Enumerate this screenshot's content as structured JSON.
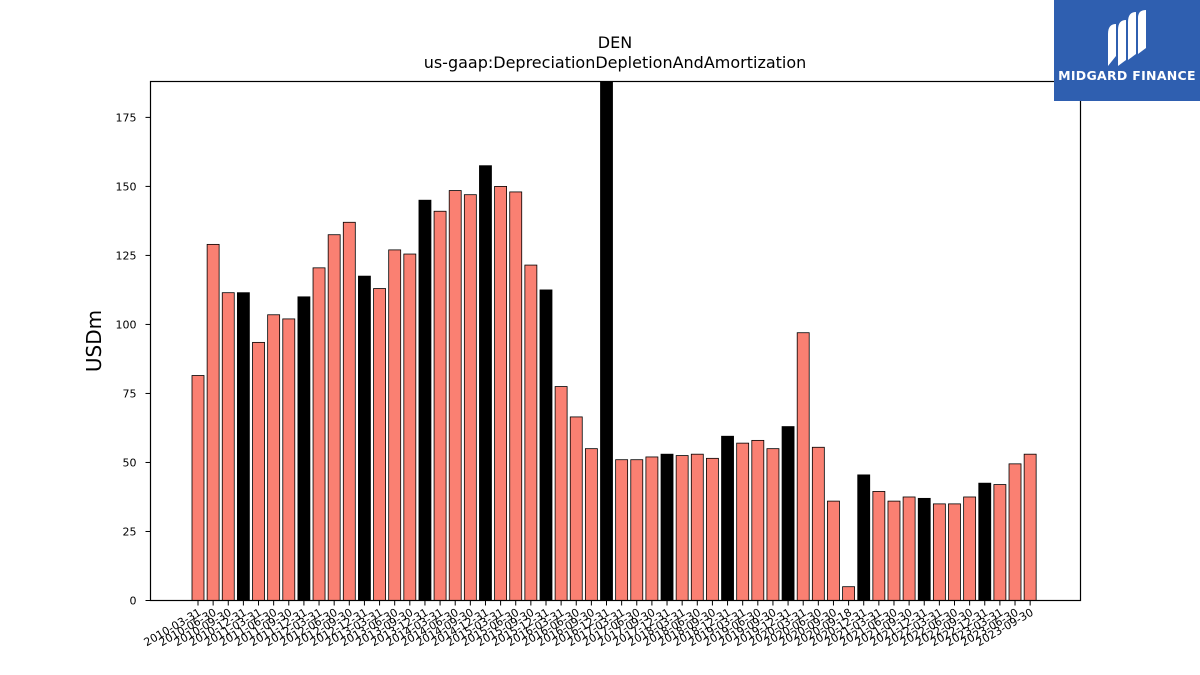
{
  "chart_data": {
    "type": "bar",
    "title": "DEN",
    "subtitle": "us-gaap:DepreciationDepletionAndAmortization",
    "xlabel": "",
    "ylabel": "USDm",
    "ylim": [
      0,
      188
    ],
    "yticks": [
      0,
      25,
      50,
      75,
      100,
      125,
      150,
      175
    ],
    "grid": false,
    "legend": "none",
    "colors": {
      "quarter": "#fa8072",
      "annual": "#000000",
      "edge": "#000000"
    },
    "categories": [
      "2010-03-31",
      "2010-06-30",
      "2010-09-30",
      "2010-12-31",
      "2011-03-31",
      "2011-06-30",
      "2011-09-30",
      "2011-12-31",
      "2012-03-31",
      "2012-06-30",
      "2012-09-30",
      "2012-12-31",
      "2013-03-31",
      "2013-06-30",
      "2013-09-30",
      "2013-12-31",
      "2014-03-31",
      "2014-06-30",
      "2014-09-30",
      "2014-12-31",
      "2015-03-31",
      "2015-06-30",
      "2015-09-30",
      "2015-12-31",
      "2016-03-31",
      "2016-06-30",
      "2016-09-30",
      "2016-12-31",
      "2017-03-31",
      "2017-06-30",
      "2017-09-30",
      "2017-12-31",
      "2018-03-31",
      "2018-06-30",
      "2018-09-30",
      "2018-12-31",
      "2019-03-31",
      "2019-06-30",
      "2019-09-30",
      "2019-12-31",
      "2020-03-31",
      "2020-06-30",
      "2020-09-30",
      "2020-09-18",
      "2020-12-31",
      "2021-03-31",
      "2021-06-30",
      "2021-09-30",
      "2021-12-31",
      "2022-03-31",
      "2022-06-30",
      "2022-09-30",
      "2022-12-31",
      "2023-03-31",
      "2023-06-30",
      "2023-09-30"
    ],
    "values": [
      81.5,
      129,
      111.5,
      111.5,
      93.5,
      103.5,
      102,
      110,
      120.5,
      132.5,
      137,
      117.5,
      113,
      127,
      125.5,
      145,
      141,
      148.5,
      147,
      157.5,
      150,
      148,
      121.5,
      112.5,
      77.5,
      66.5,
      55,
      188,
      51,
      51,
      52,
      53,
      52.5,
      53,
      51.5,
      59.5,
      57,
      58,
      55,
      63,
      97,
      55.5,
      36,
      5,
      45.5,
      39.5,
      36,
      37.5,
      37,
      35,
      35,
      37.5,
      42.5,
      42,
      49.5,
      53
    ],
    "annual_flags": [
      0,
      0,
      0,
      1,
      0,
      0,
      0,
      1,
      0,
      0,
      0,
      1,
      0,
      0,
      0,
      1,
      0,
      0,
      0,
      1,
      0,
      0,
      0,
      1,
      0,
      0,
      0,
      1,
      0,
      0,
      0,
      1,
      0,
      0,
      0,
      1,
      0,
      0,
      0,
      1,
      0,
      0,
      0,
      0,
      1,
      0,
      0,
      0,
      1,
      0,
      0,
      0,
      1,
      0,
      0,
      0
    ]
  },
  "logo": {
    "text": "MIDGARD FINANCE"
  }
}
